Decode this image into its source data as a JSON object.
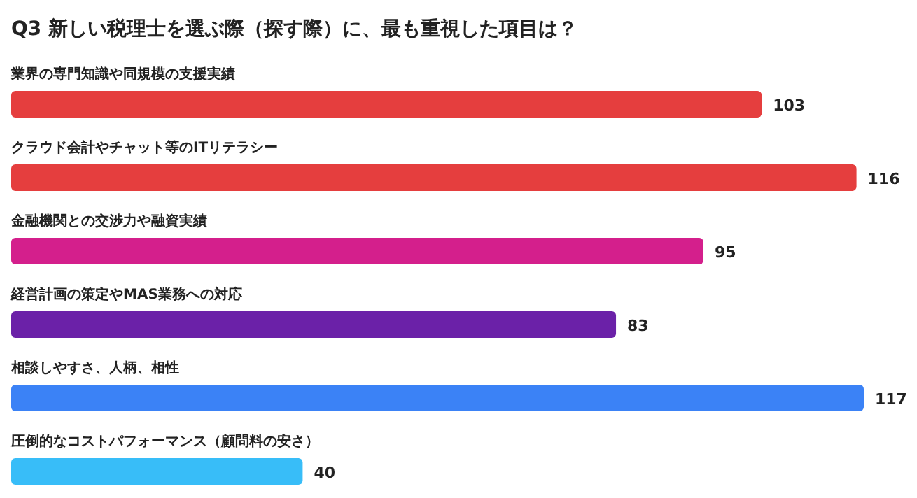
{
  "chart_data": {
    "type": "bar",
    "orientation": "horizontal",
    "title": "Q3 新しい税理士を選ぶ際（探す際）に、最も重視した項目は？",
    "categories": [
      "業界の専門知識や同規模の支援実績",
      "クラウド会計やチャット等のITリテラシー",
      "金融機関との交渉力や融資実績",
      "経営計画の策定やMAS業務への対応",
      "相談しやすさ、人柄、相性",
      "圧倒的なコストパフォーマンス（顧問料の安さ）"
    ],
    "values": [
      103,
      116,
      95,
      83,
      117,
      40
    ],
    "colors": [
      "#e53e3e",
      "#e53e3e",
      "#d41f8c",
      "#6b21a8",
      "#3b82f6",
      "#38bdf8"
    ],
    "data_labels": true
  }
}
